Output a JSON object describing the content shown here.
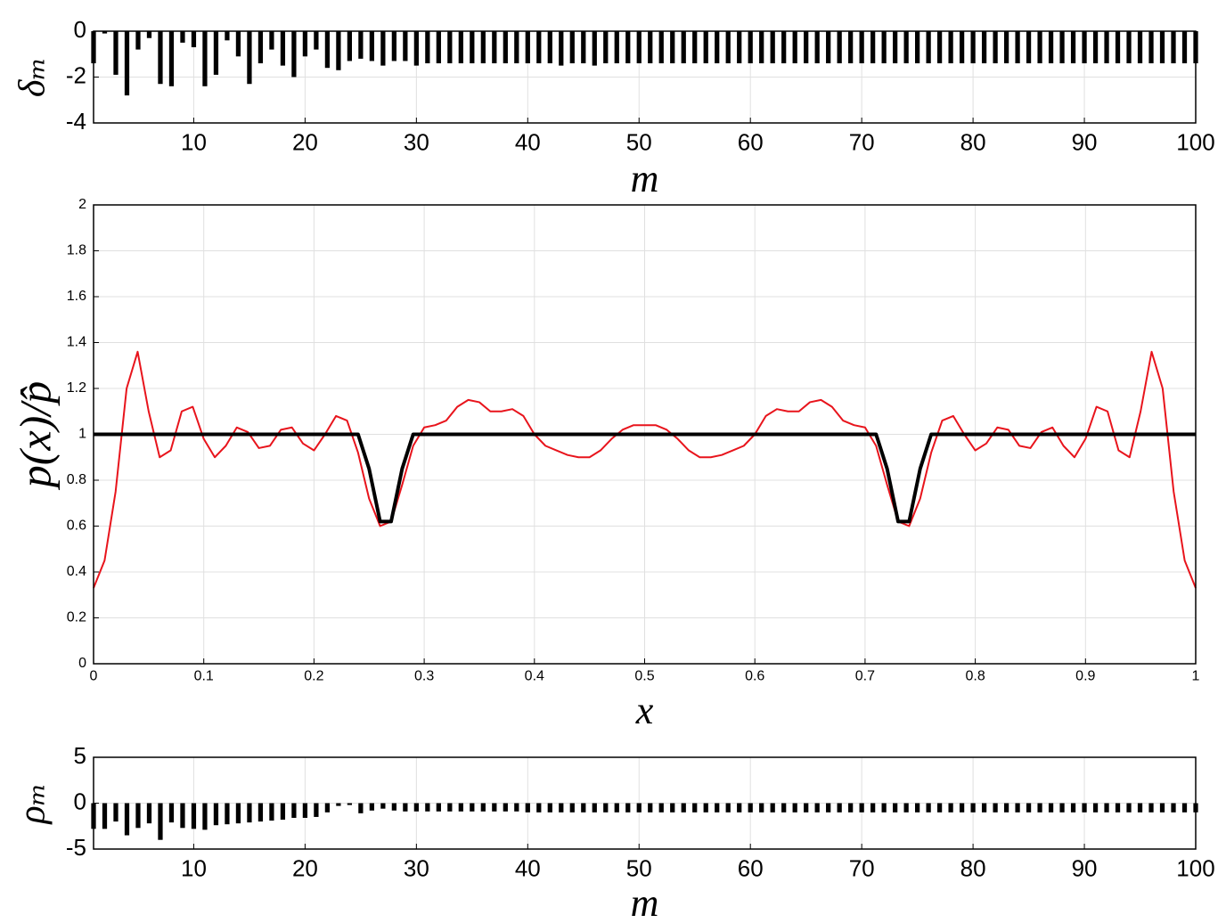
{
  "chart_data": [
    {
      "type": "bar",
      "ylabel": "δₘ",
      "xlabel": "m",
      "color": "#000000",
      "grid": true,
      "x": [
        1,
        2,
        3,
        4,
        5,
        6,
        7,
        8,
        9,
        10,
        11,
        12,
        13,
        14,
        15,
        16,
        17,
        18,
        19,
        20,
        21,
        22,
        23,
        24,
        25,
        26,
        27,
        28,
        29,
        30,
        31,
        32,
        33,
        34,
        35,
        36,
        37,
        38,
        39,
        40,
        41,
        42,
        43,
        44,
        45,
        46,
        47,
        48,
        49,
        50,
        51,
        52,
        53,
        54,
        55,
        56,
        57,
        58,
        59,
        60,
        61,
        62,
        63,
        64,
        65,
        66,
        67,
        68,
        69,
        70,
        71,
        72,
        73,
        74,
        75,
        76,
        77,
        78,
        79,
        80,
        81,
        82,
        83,
        84,
        85,
        86,
        87,
        88,
        89,
        90,
        91,
        92,
        93,
        94,
        95,
        96,
        97,
        98,
        99,
        100
      ],
      "values": [
        -1.4,
        -0.1,
        -1.9,
        -2.8,
        -0.8,
        -0.3,
        -2.3,
        -2.4,
        -0.5,
        -0.7,
        -2.4,
        -1.9,
        -0.4,
        -1.1,
        -2.3,
        -1.4,
        -0.8,
        -1.5,
        -2.0,
        -1.1,
        -0.8,
        -1.6,
        -1.7,
        -1.3,
        -1.2,
        -1.3,
        -1.5,
        -1.3,
        -1.3,
        -1.5,
        -1.4,
        -1.4,
        -1.4,
        -1.4,
        -1.4,
        -1.4,
        -1.4,
        -1.4,
        -1.4,
        -1.4,
        -1.4,
        -1.4,
        -1.5,
        -1.4,
        -1.4,
        -1.5,
        -1.4,
        -1.4,
        -1.4,
        -1.4,
        -1.4,
        -1.4,
        -1.4,
        -1.4,
        -1.4,
        -1.4,
        -1.4,
        -1.4,
        -1.4,
        -1.4,
        -1.4,
        -1.4,
        -1.4,
        -1.4,
        -1.4,
        -1.4,
        -1.4,
        -1.4,
        -1.4,
        -1.4,
        -1.4,
        -1.4,
        -1.4,
        -1.4,
        -1.4,
        -1.4,
        -1.4,
        -1.4,
        -1.4,
        -1.4,
        -1.4,
        -1.4,
        -1.4,
        -1.4,
        -1.4,
        -1.4,
        -1.4,
        -1.4,
        -1.4,
        -1.4,
        -1.4,
        -1.4,
        -1.4,
        -1.4,
        -1.4,
        -1.4,
        -1.4,
        -1.4,
        -1.4,
        -1.4
      ],
      "xlim": [
        1,
        100
      ],
      "xticks": [
        10,
        20,
        30,
        40,
        50,
        60,
        70,
        80,
        90,
        100
      ],
      "ylim": [
        -4,
        0
      ],
      "yticks": [
        -4,
        -2,
        0
      ]
    },
    {
      "type": "line",
      "ylabel": "p(x)/p̂",
      "xlabel": "x",
      "grid": true,
      "x": [
        0,
        0.01,
        0.02,
        0.03,
        0.04,
        0.05,
        0.06,
        0.07,
        0.08,
        0.09,
        0.1,
        0.11,
        0.12,
        0.13,
        0.14,
        0.15,
        0.16,
        0.17,
        0.18,
        0.19,
        0.2,
        0.21,
        0.22,
        0.23,
        0.24,
        0.25,
        0.26,
        0.27,
        0.28,
        0.29,
        0.3,
        0.31,
        0.32,
        0.33,
        0.34,
        0.35,
        0.36,
        0.37,
        0.38,
        0.39,
        0.4,
        0.41,
        0.42,
        0.43,
        0.44,
        0.45,
        0.46,
        0.47,
        0.48,
        0.49,
        0.5,
        0.51,
        0.52,
        0.53,
        0.54,
        0.55,
        0.56,
        0.57,
        0.58,
        0.59,
        0.6,
        0.61,
        0.62,
        0.63,
        0.64,
        0.65,
        0.66,
        0.67,
        0.68,
        0.69,
        0.7,
        0.71,
        0.72,
        0.73,
        0.74,
        0.75,
        0.76,
        0.77,
        0.78,
        0.79,
        0.8,
        0.81,
        0.82,
        0.83,
        0.84,
        0.85,
        0.86,
        0.87,
        0.88,
        0.89,
        0.9,
        0.91,
        0.92,
        0.93,
        0.94,
        0.95,
        0.96,
        0.97,
        0.98,
        0.99,
        1
      ],
      "series": [
        {
          "color": "#e8141c",
          "width": 2,
          "values": [
            0.33,
            0.45,
            0.75,
            1.2,
            1.36,
            1.1,
            0.9,
            0.93,
            1.1,
            1.12,
            0.98,
            0.9,
            0.95,
            1.03,
            1.01,
            0.94,
            0.95,
            1.02,
            1.03,
            0.96,
            0.93,
            1.0,
            1.08,
            1.06,
            0.92,
            0.72,
            0.6,
            0.62,
            0.78,
            0.95,
            1.03,
            1.04,
            1.06,
            1.12,
            1.15,
            1.14,
            1.1,
            1.1,
            1.11,
            1.08,
            1.0,
            0.95,
            0.93,
            0.91,
            0.9,
            0.9,
            0.93,
            0.98,
            1.02,
            1.04,
            1.04,
            1.04,
            1.02,
            0.98,
            0.93,
            0.9,
            0.9,
            0.91,
            0.93,
            0.95,
            1.0,
            1.08,
            1.11,
            1.1,
            1.1,
            1.14,
            1.15,
            1.12,
            1.06,
            1.04,
            1.03,
            0.95,
            0.78,
            0.62,
            0.6,
            0.72,
            0.92,
            1.06,
            1.08,
            1.0,
            0.93,
            0.96,
            1.03,
            1.02,
            0.95,
            0.94,
            1.01,
            1.03,
            0.95,
            0.9,
            0.98,
            1.12,
            1.1,
            0.93,
            0.9,
            1.1,
            1.36,
            1.2,
            0.75,
            0.45,
            0.33
          ]
        },
        {
          "color": "#000000",
          "width": 4,
          "values": [
            1,
            1,
            1,
            1,
            1,
            1,
            1,
            1,
            1,
            1,
            1,
            1,
            1,
            1,
            1,
            1,
            1,
            1,
            1,
            1,
            1,
            1,
            1,
            1,
            1,
            0.85,
            0.62,
            0.62,
            0.85,
            1,
            1,
            1,
            1,
            1,
            1,
            1,
            1,
            1,
            1,
            1,
            1,
            1,
            1,
            1,
            1,
            1,
            1,
            1,
            1,
            1,
            1,
            1,
            1,
            1,
            1,
            1,
            1,
            1,
            1,
            1,
            1,
            1,
            1,
            1,
            1,
            1,
            1,
            1,
            1,
            1,
            1,
            1,
            0.85,
            0.62,
            0.62,
            0.85,
            1,
            1,
            1,
            1,
            1,
            1,
            1,
            1,
            1,
            1,
            1,
            1,
            1,
            1,
            1,
            1,
            1,
            1,
            1,
            1,
            1,
            1,
            1,
            1,
            1
          ]
        }
      ],
      "xlim": [
        0,
        1
      ],
      "xticks": [
        0,
        0.1,
        0.2,
        0.3,
        0.4,
        0.5,
        0.6,
        0.7,
        0.8,
        0.9,
        1
      ],
      "ylim": [
        0,
        2
      ],
      "yticks": [
        0,
        0.2,
        0.4,
        0.6,
        0.8,
        1,
        1.2,
        1.4,
        1.6,
        1.8,
        2
      ]
    },
    {
      "type": "bar",
      "ylabel": "ρₘ",
      "xlabel": "m",
      "color": "#000000",
      "grid": true,
      "x": [
        1,
        2,
        3,
        4,
        5,
        6,
        7,
        8,
        9,
        10,
        11,
        12,
        13,
        14,
        15,
        16,
        17,
        18,
        19,
        20,
        21,
        22,
        23,
        24,
        25,
        26,
        27,
        28,
        29,
        30,
        31,
        32,
        33,
        34,
        35,
        36,
        37,
        38,
        39,
        40,
        41,
        42,
        43,
        44,
        45,
        46,
        47,
        48,
        49,
        50,
        51,
        52,
        53,
        54,
        55,
        56,
        57,
        58,
        59,
        60,
        61,
        62,
        63,
        64,
        65,
        66,
        67,
        68,
        69,
        70,
        71,
        72,
        73,
        74,
        75,
        76,
        77,
        78,
        79,
        80,
        81,
        82,
        83,
        84,
        85,
        86,
        87,
        88,
        89,
        90,
        91,
        92,
        93,
        94,
        95,
        96,
        97,
        98,
        99,
        100
      ],
      "values": [
        -2.8,
        -2.8,
        -2.0,
        -3.5,
        -2.7,
        -2.2,
        -4.0,
        -2.1,
        -2.7,
        -2.8,
        -2.9,
        -2.4,
        -2.3,
        -2.2,
        -2.1,
        -2.0,
        -1.9,
        -1.8,
        -1.6,
        -1.6,
        -1.5,
        -1.0,
        -0.3,
        -0.2,
        -1.1,
        -0.8,
        -0.6,
        -0.8,
        -0.9,
        -0.9,
        -0.9,
        -0.9,
        -0.9,
        -0.9,
        -0.9,
        -0.9,
        -0.9,
        -0.9,
        -0.9,
        -1.0,
        -1.0,
        -1.0,
        -1.0,
        -1.0,
        -1.0,
        -1.0,
        -1.0,
        -1.0,
        -1.0,
        -1.0,
        -1.0,
        -1.0,
        -1.0,
        -1.0,
        -1.0,
        -1.0,
        -1.0,
        -1.0,
        -1.0,
        -1.0,
        -1.0,
        -1.0,
        -1.0,
        -1.0,
        -1.0,
        -1.0,
        -1.0,
        -1.0,
        -1.0,
        -1.0,
        -1.0,
        -1.0,
        -1.0,
        -1.0,
        -1.0,
        -1.0,
        -1.0,
        -1.0,
        -1.0,
        -1.0,
        -1.0,
        -1.0,
        -1.0,
        -1.0,
        -1.0,
        -1.0,
        -1.0,
        -1.0,
        -1.0,
        -1.0,
        -1.0,
        -1.0,
        -1.0,
        -1.0,
        -1.0,
        -1.0,
        -1.0,
        -1.0,
        -1.0,
        -1.0
      ],
      "xlim": [
        1,
        100
      ],
      "xticks": [
        10,
        20,
        30,
        40,
        50,
        60,
        70,
        80,
        90,
        100
      ],
      "ylim": [
        -5,
        5
      ],
      "yticks": [
        -5,
        0,
        5
      ]
    }
  ]
}
